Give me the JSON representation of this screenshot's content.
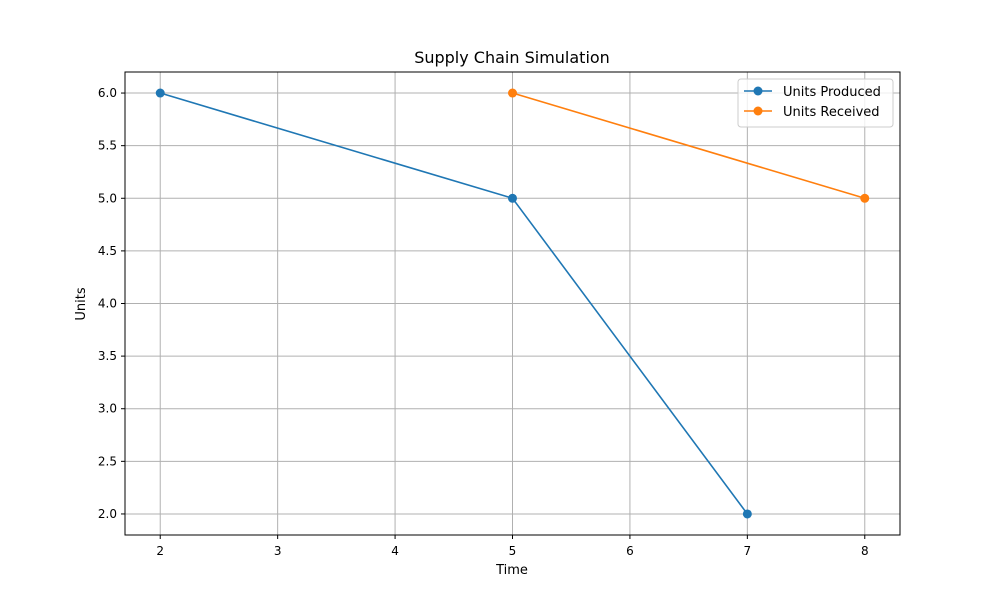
{
  "chart_data": {
    "type": "line",
    "title": "Supply Chain Simulation",
    "xlabel": "Time",
    "ylabel": "Units",
    "xlim": [
      1.7,
      8.3
    ],
    "ylim": [
      1.8,
      6.2
    ],
    "xticks": [
      2,
      3,
      4,
      5,
      6,
      7,
      8
    ],
    "yticks": [
      2.0,
      2.5,
      3.0,
      3.5,
      4.0,
      4.5,
      5.0,
      5.5,
      6.0
    ],
    "grid": true,
    "legend_position": "top-right",
    "series": [
      {
        "name": "Units Produced",
        "color": "#1f77b4",
        "x": [
          2,
          5,
          7
        ],
        "y": [
          6,
          5,
          2
        ]
      },
      {
        "name": "Units Received",
        "color": "#ff7f0e",
        "x": [
          5,
          8
        ],
        "y": [
          6,
          5
        ]
      }
    ]
  }
}
